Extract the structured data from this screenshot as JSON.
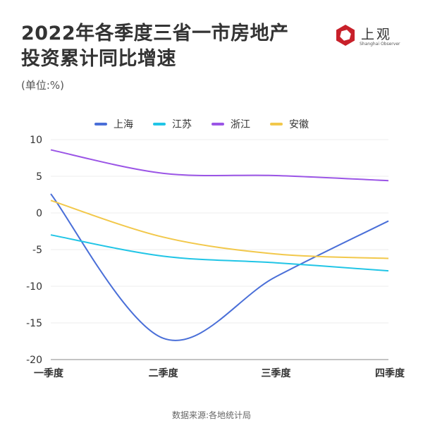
{
  "header": {
    "title_line1": "2022年各季度三省一市房地产",
    "title_line2": "投资累计同比增速",
    "unit": "(单位:%)"
  },
  "logo": {
    "name": "上观",
    "subtitle": "Shanghai Observer",
    "color": "#c8202a"
  },
  "source": "数据来源:各地统计局",
  "chart_data": {
    "type": "line",
    "title": "2022年各季度三省一市房地产投资累计同比增速",
    "ylabel": "(单位:%)",
    "categories": [
      "一季度",
      "二季度",
      "三季度",
      "四季度"
    ],
    "ylim": [
      -20,
      10
    ],
    "yticks": [
      10,
      5,
      0,
      -5,
      -10,
      -15,
      -20
    ],
    "grid": true,
    "legend_position": "top",
    "series": [
      {
        "name": "上海",
        "color": "#4a6fd8",
        "values": [
          2.6,
          -17.1,
          -8.7,
          -1.1
        ]
      },
      {
        "name": "江苏",
        "color": "#21c5e6",
        "values": [
          -3.0,
          -5.9,
          -6.8,
          -7.9
        ]
      },
      {
        "name": "浙江",
        "color": "#9b55e6",
        "values": [
          8.6,
          5.4,
          5.1,
          4.4
        ]
      },
      {
        "name": "安徽",
        "color": "#f2c84b",
        "values": [
          1.7,
          -3.3,
          -5.6,
          -6.2
        ]
      }
    ]
  }
}
